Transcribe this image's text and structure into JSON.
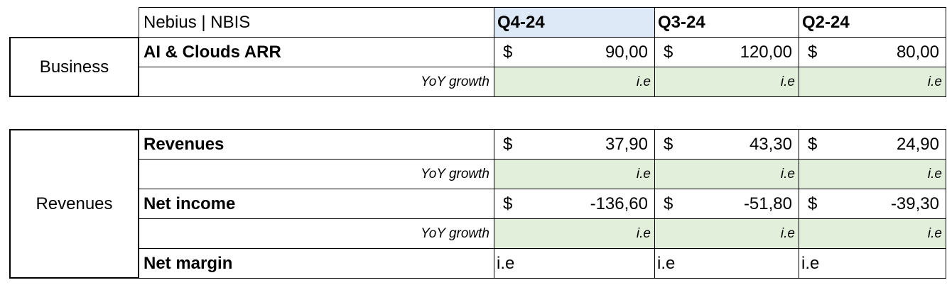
{
  "header": {
    "title": "Nebius | NBIS",
    "periods": [
      "Q4-24",
      "Q3-24",
      "Q2-24"
    ]
  },
  "sections": [
    {
      "label": "Business",
      "rows": [
        {
          "label": "AI & Clouds ARR",
          "cells": [
            {
              "currency": "$",
              "amount": "90,00"
            },
            {
              "currency": "$",
              "amount": "120,00"
            },
            {
              "currency": "$",
              "amount": "80,00"
            }
          ],
          "growth": {
            "label": "YoY growth",
            "values": [
              "i.e",
              "i.e",
              "i.e"
            ]
          }
        }
      ]
    },
    {
      "label": "Revenues",
      "rows": [
        {
          "label": "Revenues",
          "cells": [
            {
              "currency": "$",
              "amount": "37,90"
            },
            {
              "currency": "$",
              "amount": "43,30"
            },
            {
              "currency": "$",
              "amount": "24,90"
            }
          ],
          "growth": {
            "label": "YoY growth",
            "values": [
              "i.e",
              "i.e",
              "i.e"
            ]
          }
        },
        {
          "label": "Net income",
          "cells": [
            {
              "currency": "$",
              "amount": "-136,60"
            },
            {
              "currency": "$",
              "amount": "-51,80"
            },
            {
              "currency": "$",
              "amount": "-39,30"
            }
          ],
          "growth": {
            "label": "YoY growth",
            "values": [
              "i.e",
              "i.e",
              "i.e"
            ]
          }
        },
        {
          "label": "Net margin",
          "values": [
            "i.e",
            "i.e",
            "i.e"
          ]
        }
      ]
    }
  ]
}
